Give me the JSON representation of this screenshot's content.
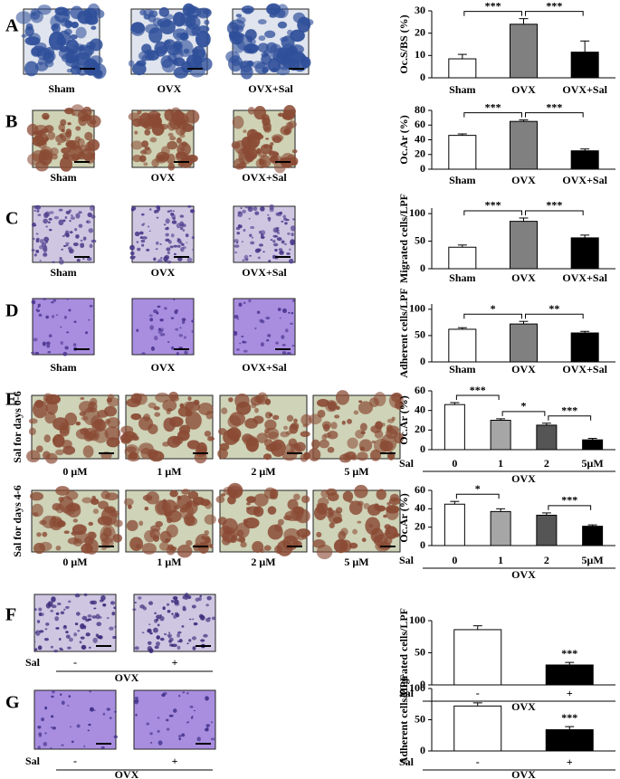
{
  "figure": {
    "panel_letters": [
      "A",
      "B",
      "C",
      "D",
      "E",
      "F",
      "G"
    ],
    "image_rows": [
      {
        "labels": [
          "Sham",
          "OVX",
          "OVX+Sal"
        ]
      },
      {
        "labels": [
          "Sham",
          "OVX",
          "OVX+Sal"
        ]
      },
      {
        "labels": [
          "Sham",
          "OVX",
          "OVX+Sal"
        ]
      },
      {
        "labels": [
          "Sham",
          "OVX",
          "OVX+Sal"
        ]
      },
      {
        "side_label": "Sal for days 0-6",
        "labels": [
          "0 μM",
          "1 μM",
          "2 μM",
          "5 μM"
        ]
      },
      {
        "side_label": "Sal for days 4-6",
        "labels": [
          "0 μM",
          "1 μM",
          "2 μM",
          "5 μM"
        ]
      },
      {
        "treatment": "Sal",
        "labels": [
          "-",
          "+"
        ],
        "group": "OVX"
      },
      {
        "treatment": "Sal",
        "labels": [
          "-",
          "+"
        ],
        "group": "OVX"
      }
    ]
  },
  "chart_data": [
    {
      "type": "bar",
      "ylabel": "Oc.S/BS (%)",
      "categories": [
        "Sham",
        "OVX",
        "OVX+Sal"
      ],
      "values": [
        8.5,
        24,
        11.5
      ],
      "errors": [
        2,
        2.5,
        5
      ],
      "colors": [
        "#ffffff",
        "#808080",
        "#000000"
      ],
      "ylim": [
        0,
        30
      ],
      "yticks": [
        0,
        10,
        20,
        30
      ],
      "significance": [
        {
          "from": 0,
          "to": 1,
          "label": "***"
        },
        {
          "from": 1,
          "to": 2,
          "label": "***"
        }
      ]
    },
    {
      "type": "bar",
      "ylabel": "Oc.Ar (%)",
      "categories": [
        "Sham",
        "OVX",
        "OVX+Sal"
      ],
      "values": [
        46,
        65,
        25
      ],
      "errors": [
        2,
        2,
        2.5
      ],
      "colors": [
        "#ffffff",
        "#808080",
        "#000000"
      ],
      "ylim": [
        0,
        80
      ],
      "yticks": [
        0,
        20,
        40,
        60,
        80
      ],
      "significance": [
        {
          "from": 0,
          "to": 1,
          "label": "***"
        },
        {
          "from": 1,
          "to": 2,
          "label": "***"
        }
      ]
    },
    {
      "type": "bar",
      "ylabel": "Migrated cells/LPF",
      "categories": [
        "Sham",
        "OVX",
        "OVX+Sal"
      ],
      "values": [
        39,
        86,
        56
      ],
      "errors": [
        4,
        6,
        5
      ],
      "colors": [
        "#ffffff",
        "#808080",
        "#000000"
      ],
      "ylim": [
        0,
        110
      ],
      "yticks": [
        0,
        50,
        100
      ],
      "significance": [
        {
          "from": 0,
          "to": 1,
          "label": "***"
        },
        {
          "from": 1,
          "to": 2,
          "label": "***"
        }
      ]
    },
    {
      "type": "bar",
      "ylabel": "Adherent cells/LPF",
      "categories": [
        "Sham",
        "OVX",
        "OVX+Sal"
      ],
      "values": [
        62,
        72,
        55
      ],
      "errors": [
        3,
        5,
        3
      ],
      "colors": [
        "#ffffff",
        "#808080",
        "#000000"
      ],
      "ylim": [
        0,
        110
      ],
      "yticks": [
        0,
        50,
        100
      ],
      "significance": [
        {
          "from": 0,
          "to": 1,
          "label": "*"
        },
        {
          "from": 1,
          "to": 2,
          "label": "**"
        }
      ]
    },
    {
      "type": "bar",
      "ylabel": "Oc.Ar (%)",
      "treatment": "Sal",
      "group": "OVX",
      "categories": [
        "0",
        "1",
        "2",
        "5μM"
      ],
      "values": [
        46,
        30,
        25,
        10
      ],
      "errors": [
        2,
        1.5,
        2,
        1.5
      ],
      "colors": [
        "#ffffff",
        "#a6a6a6",
        "#555555",
        "#000000"
      ],
      "ylim": [
        0,
        60
      ],
      "yticks": [
        0,
        20,
        40,
        60
      ],
      "significance": [
        {
          "from": 0,
          "to": 1,
          "label": "***"
        },
        {
          "from": 1,
          "to": 2,
          "label": "*"
        },
        {
          "from": 2,
          "to": 3,
          "label": "***"
        }
      ]
    },
    {
      "type": "bar",
      "ylabel": "Oc.Ar (%)",
      "treatment": "Sal",
      "group": "OVX",
      "categories": [
        "0",
        "1",
        "2",
        "5μM"
      ],
      "values": [
        45,
        37,
        33,
        21
      ],
      "errors": [
        3,
        3,
        2.5,
        1.5
      ],
      "colors": [
        "#ffffff",
        "#a6a6a6",
        "#555555",
        "#000000"
      ],
      "ylim": [
        0,
        60
      ],
      "yticks": [
        0,
        20,
        40,
        60
      ],
      "significance": [
        {
          "from": 0,
          "to": 1,
          "label": "*"
        },
        {
          "from": 2,
          "to": 3,
          "label": "***"
        }
      ]
    },
    {
      "type": "bar",
      "ylabel": "Migrated cells/LPF",
      "treatment": "Sal",
      "group": "OVX",
      "categories": [
        "-",
        "+"
      ],
      "values": [
        86,
        31
      ],
      "errors": [
        6,
        4
      ],
      "colors": [
        "#ffffff",
        "#000000"
      ],
      "ylim": [
        0,
        100
      ],
      "yticks": [
        0,
        50,
        100
      ],
      "significance": [
        {
          "bar": 1,
          "label": "***"
        }
      ]
    },
    {
      "type": "bar",
      "ylabel": "Adherent cells/LPF",
      "treatment": "Sal",
      "group": "OVX",
      "categories": [
        "-",
        "+"
      ],
      "values": [
        72,
        34
      ],
      "errors": [
        5,
        5
      ],
      "colors": [
        "#ffffff",
        "#000000"
      ],
      "ylim": [
        0,
        100
      ],
      "yticks": [
        0,
        50,
        100
      ],
      "significance": [
        {
          "bar": 1,
          "label": "***"
        }
      ]
    }
  ]
}
